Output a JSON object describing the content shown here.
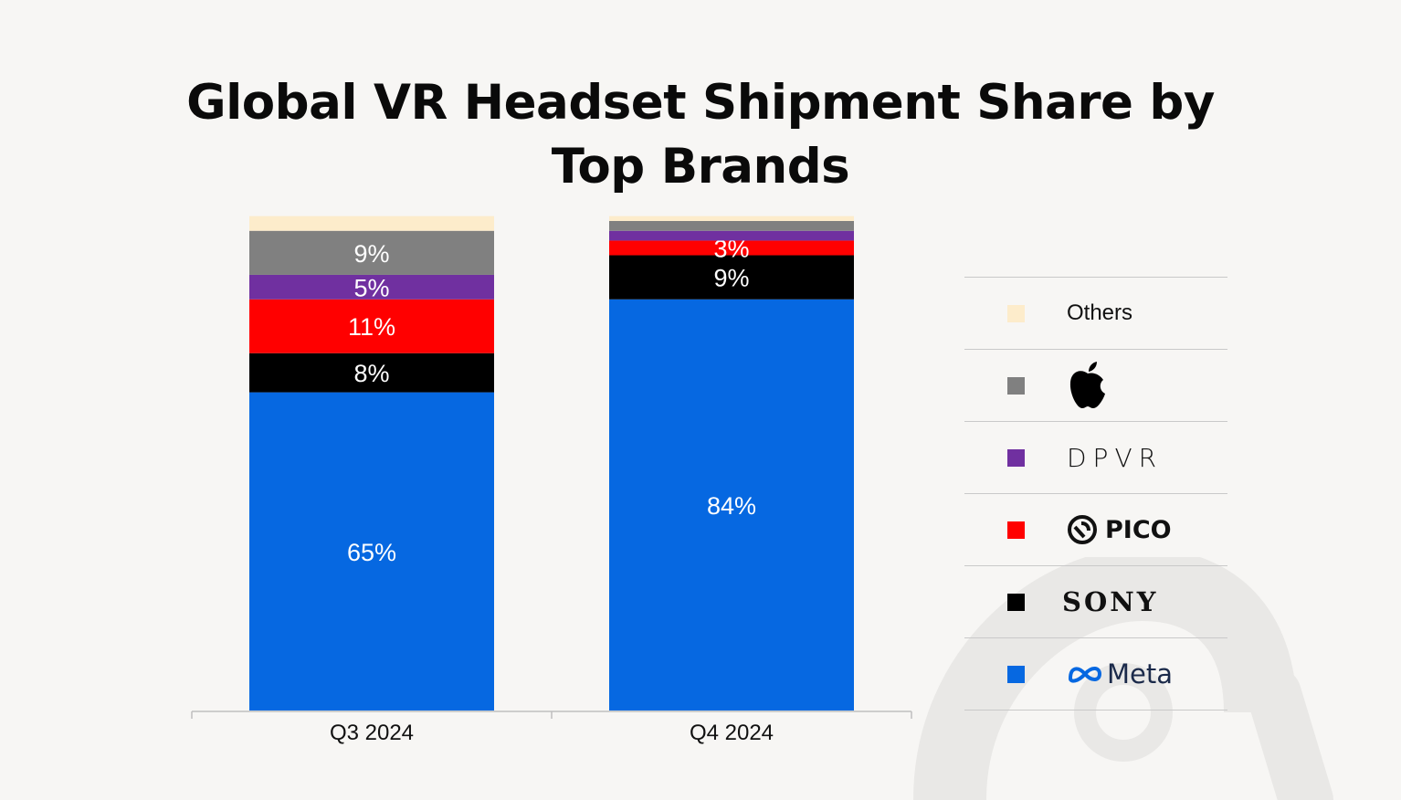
{
  "title_line1": "Global VR Headset Shipment Share by",
  "title_line2": "Top Brands",
  "colors": {
    "Others": "#fdeccb",
    "Apple": "#808080",
    "DPVR": "#7030a0",
    "PICO": "#ff0000",
    "Sony": "#000000",
    "Meta": "#0668e1"
  },
  "chart_data": {
    "type": "bar",
    "stacked": true,
    "categories": [
      "Q3 2024",
      "Q4 2024"
    ],
    "ylim": [
      0,
      100
    ],
    "grid": false,
    "legend_position": "right",
    "series": [
      {
        "name": "Meta",
        "values": [
          65,
          84
        ],
        "labels": [
          "65%",
          "84%"
        ]
      },
      {
        "name": "Sony",
        "values": [
          8,
          9
        ],
        "labels": [
          "8%",
          "9%"
        ]
      },
      {
        "name": "PICO",
        "values": [
          11,
          3
        ],
        "labels": [
          "11%",
          "3%"
        ]
      },
      {
        "name": "DPVR",
        "values": [
          5,
          2
        ],
        "labels": [
          "5%",
          ""
        ]
      },
      {
        "name": "Apple",
        "values": [
          9,
          2
        ],
        "labels": [
          "9%",
          ""
        ]
      },
      {
        "name": "Others",
        "values": [
          3,
          1
        ],
        "labels": [
          "",
          ""
        ]
      }
    ]
  },
  "legend": {
    "others_label": "Others",
    "dpvr_label": "DPVR",
    "pico_label": "PICO",
    "sony_label": "SONY",
    "meta_label": "Meta"
  }
}
